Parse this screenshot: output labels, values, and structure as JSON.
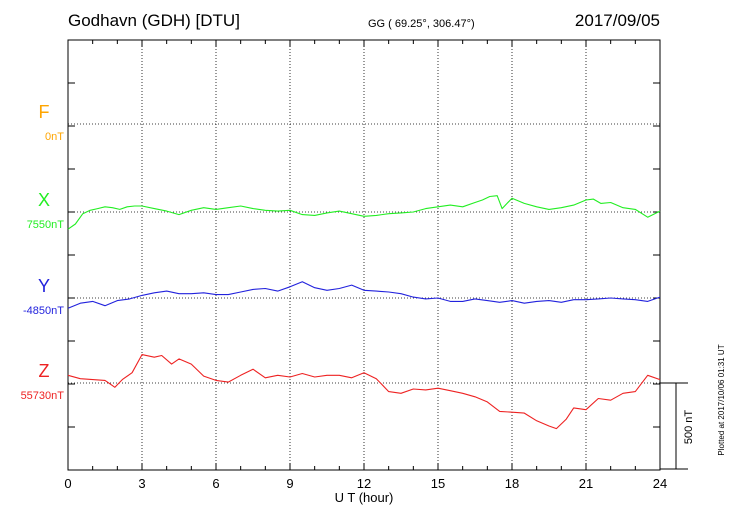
{
  "header": {
    "station": "Godhavn (GDH)  [DTU]",
    "coords": "GG ( 69.25°, 306.47°)",
    "date": "2017/09/05"
  },
  "plotted_note": "Plotted at 2017/10/06 01:31  UT",
  "scale_label": "500 nT",
  "chart_data": {
    "type": "line",
    "xlabel": "U T (hour)",
    "xlim": [
      0,
      24
    ],
    "xticks": [
      "0",
      "3",
      "6",
      "9",
      "12",
      "15",
      "18",
      "21",
      "24"
    ],
    "scale_bar_nT": 500,
    "series": [
      {
        "name": "F",
        "baseline": "0nT",
        "color": "#ffa500",
        "points": []
      },
      {
        "name": "X",
        "baseline": "7550nT",
        "color": "#22ee22",
        "points": [
          [
            0,
            -100
          ],
          [
            0.3,
            -70
          ],
          [
            0.6,
            -10
          ],
          [
            0.9,
            10
          ],
          [
            1.2,
            20
          ],
          [
            1.5,
            30
          ],
          [
            1.8,
            25
          ],
          [
            2.1,
            15
          ],
          [
            2.4,
            30
          ],
          [
            2.7,
            35
          ],
          [
            3.0,
            35
          ],
          [
            3.5,
            20
          ],
          [
            4.0,
            5
          ],
          [
            4.5,
            -15
          ],
          [
            5.0,
            10
          ],
          [
            5.5,
            25
          ],
          [
            6.0,
            15
          ],
          [
            6.5,
            25
          ],
          [
            7.0,
            35
          ],
          [
            7.5,
            20
          ],
          [
            8.0,
            10
          ],
          [
            8.5,
            5
          ],
          [
            9.0,
            10
          ],
          [
            9.5,
            -15
          ],
          [
            10.0,
            -20
          ],
          [
            10.5,
            -5
          ],
          [
            11.0,
            5
          ],
          [
            11.5,
            -10
          ],
          [
            12.0,
            -25
          ],
          [
            12.5,
            -20
          ],
          [
            13.0,
            -10
          ],
          [
            13.5,
            -5
          ],
          [
            14.0,
            0
          ],
          [
            14.5,
            20
          ],
          [
            15.0,
            30
          ],
          [
            15.5,
            40
          ],
          [
            16.0,
            30
          ],
          [
            16.5,
            55
          ],
          [
            16.8,
            70
          ],
          [
            17.1,
            90
          ],
          [
            17.4,
            95
          ],
          [
            17.6,
            20
          ],
          [
            18.0,
            80
          ],
          [
            18.5,
            50
          ],
          [
            19.0,
            30
          ],
          [
            19.5,
            15
          ],
          [
            20.0,
            25
          ],
          [
            20.5,
            40
          ],
          [
            21.0,
            70
          ],
          [
            21.3,
            75
          ],
          [
            21.6,
            50
          ],
          [
            22.0,
            55
          ],
          [
            22.5,
            25
          ],
          [
            23.0,
            15
          ],
          [
            23.5,
            -30
          ],
          [
            24.0,
            5
          ]
        ]
      },
      {
        "name": "Y",
        "baseline": "-4850nT",
        "color": "#2222dd",
        "points": [
          [
            0,
            -60
          ],
          [
            0.5,
            -30
          ],
          [
            1.0,
            -20
          ],
          [
            1.5,
            -45
          ],
          [
            2.0,
            -15
          ],
          [
            2.5,
            -5
          ],
          [
            3.0,
            15
          ],
          [
            3.5,
            30
          ],
          [
            4.0,
            40
          ],
          [
            4.5,
            25
          ],
          [
            5.0,
            25
          ],
          [
            5.5,
            30
          ],
          [
            6.0,
            20
          ],
          [
            6.5,
            20
          ],
          [
            7.0,
            35
          ],
          [
            7.5,
            50
          ],
          [
            8.0,
            55
          ],
          [
            8.5,
            40
          ],
          [
            9.0,
            65
          ],
          [
            9.5,
            95
          ],
          [
            10.0,
            60
          ],
          [
            10.5,
            45
          ],
          [
            11.0,
            55
          ],
          [
            11.5,
            75
          ],
          [
            12.0,
            45
          ],
          [
            12.5,
            40
          ],
          [
            13.0,
            35
          ],
          [
            13.5,
            25
          ],
          [
            14.0,
            5
          ],
          [
            14.5,
            -5
          ],
          [
            15.0,
            0
          ],
          [
            15.5,
            -20
          ],
          [
            16.0,
            -20
          ],
          [
            16.5,
            -5
          ],
          [
            17.0,
            -15
          ],
          [
            17.5,
            -25
          ],
          [
            18.0,
            -15
          ],
          [
            18.5,
            -30
          ],
          [
            19.0,
            -20
          ],
          [
            19.5,
            -15
          ],
          [
            20.0,
            -25
          ],
          [
            20.5,
            -10
          ],
          [
            21.0,
            -10
          ],
          [
            21.5,
            -5
          ],
          [
            22.0,
            0
          ],
          [
            22.5,
            -5
          ],
          [
            23.0,
            -10
          ],
          [
            23.5,
            -20
          ],
          [
            24.0,
            5
          ]
        ]
      },
      {
        "name": "Z",
        "baseline": "55730nT",
        "color": "#ee2222",
        "points": [
          [
            0,
            45
          ],
          [
            0.5,
            25
          ],
          [
            1.0,
            20
          ],
          [
            1.5,
            15
          ],
          [
            1.9,
            -25
          ],
          [
            2.2,
            20
          ],
          [
            2.6,
            60
          ],
          [
            3.0,
            165
          ],
          [
            3.5,
            150
          ],
          [
            3.8,
            160
          ],
          [
            4.2,
            110
          ],
          [
            4.5,
            140
          ],
          [
            5.0,
            110
          ],
          [
            5.5,
            40
          ],
          [
            6.0,
            15
          ],
          [
            6.5,
            5
          ],
          [
            7.0,
            45
          ],
          [
            7.5,
            80
          ],
          [
            8.0,
            30
          ],
          [
            8.5,
            45
          ],
          [
            9.0,
            35
          ],
          [
            9.5,
            55
          ],
          [
            10.0,
            35
          ],
          [
            10.5,
            45
          ],
          [
            11.0,
            45
          ],
          [
            11.5,
            30
          ],
          [
            12.0,
            60
          ],
          [
            12.5,
            25
          ],
          [
            13.0,
            -50
          ],
          [
            13.5,
            -60
          ],
          [
            14.0,
            -35
          ],
          [
            14.5,
            -40
          ],
          [
            15.0,
            -30
          ],
          [
            15.5,
            -45
          ],
          [
            16.0,
            -60
          ],
          [
            16.5,
            -80
          ],
          [
            17.0,
            -110
          ],
          [
            17.5,
            -165
          ],
          [
            18.0,
            -170
          ],
          [
            18.5,
            -175
          ],
          [
            19.0,
            -220
          ],
          [
            19.5,
            -250
          ],
          [
            19.8,
            -265
          ],
          [
            20.2,
            -210
          ],
          [
            20.5,
            -145
          ],
          [
            21.0,
            -155
          ],
          [
            21.5,
            -90
          ],
          [
            22.0,
            -100
          ],
          [
            22.5,
            -60
          ],
          [
            23.0,
            -50
          ],
          [
            23.5,
            45
          ],
          [
            24.0,
            20
          ]
        ]
      }
    ]
  }
}
